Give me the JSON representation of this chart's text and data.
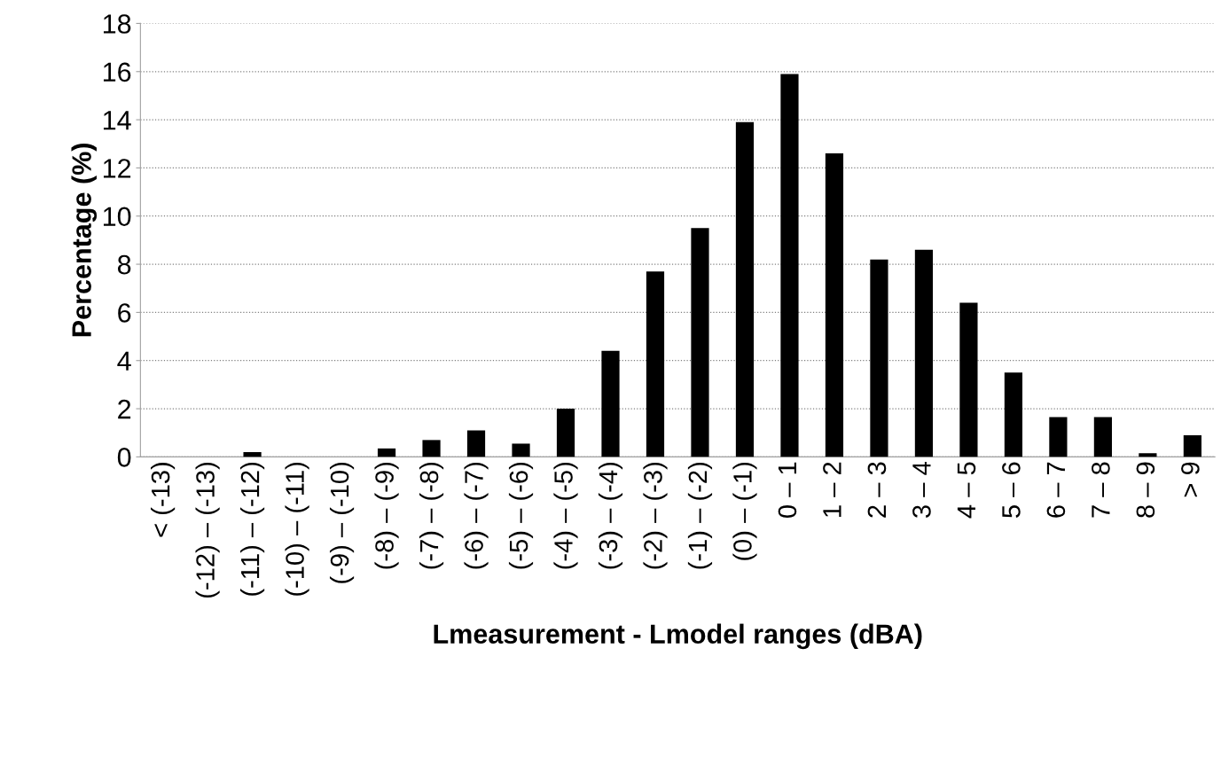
{
  "chart_data": {
    "type": "bar",
    "xlabel": "Lmeasurement - Lmodel ranges (dBA)",
    "ylabel": "Percentage (%)",
    "categories": [
      "< (-13)",
      "(-12) – (-13)",
      "(-11) – (-12)",
      "(-10) – (-11)",
      "(-9) – (-10)",
      "(-8) – (-9)",
      "(-7) – (-8)",
      "(-6) – (-7)",
      "(-5) – (-6)",
      "(-4) – (-5)",
      "(-3) – (-4)",
      "(-2) – (-3)",
      "(-1) – (-2)",
      "(0) – (-1)",
      "0 – 1",
      "1 – 2",
      "2 – 3",
      "3 – 4",
      "4 – 5",
      "5 – 6",
      "6 – 7",
      "7 – 8",
      "8 – 9",
      "> 9"
    ],
    "values": [
      0,
      0,
      0.2,
      0,
      0,
      0.35,
      0.7,
      1.1,
      0.55,
      2.0,
      4.4,
      7.7,
      9.5,
      13.9,
      15.9,
      12.6,
      8.2,
      8.6,
      6.4,
      3.5,
      1.65,
      1.65,
      0.15,
      0.9
    ],
    "color": "#000000",
    "ylim": [
      0,
      18
    ],
    "yticks": [
      0,
      2,
      4,
      6,
      8,
      10,
      12,
      14,
      16,
      18
    ],
    "grid": "y"
  }
}
